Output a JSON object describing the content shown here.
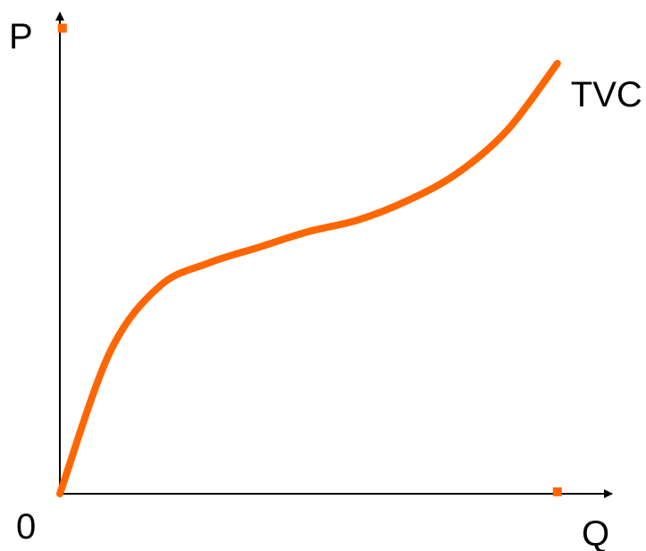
{
  "chart_data": {
    "type": "line",
    "ylabel": "P",
    "xlabel": "Q",
    "origin_label": "0",
    "series": [
      {
        "name": "TVC",
        "x": [
          0,
          1,
          2,
          3,
          4,
          5,
          6,
          7,
          8,
          9,
          10
        ],
        "y": [
          0,
          3.6,
          5.3,
          5.9,
          6.3,
          6.7,
          7.0,
          7.5,
          8.2,
          9.3,
          11.0
        ]
      }
    ],
    "xlim": [
      0,
      11.1
    ],
    "ylim": [
      0,
      12.3
    ],
    "markers": [
      {
        "axis": "y",
        "x": 0.05,
        "y": 11.9
      },
      {
        "axis": "x",
        "x": 10.0,
        "y": 0.05
      }
    ],
    "colors": {
      "curve": "#ff6600",
      "axes": "#000000"
    },
    "grid": false
  }
}
